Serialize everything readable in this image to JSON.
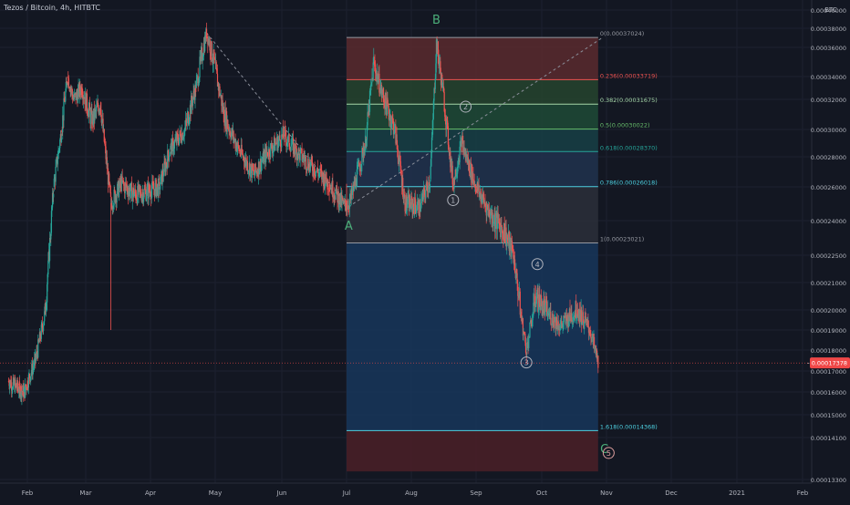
{
  "header": {
    "symbol_title": "Tezos / Bitcoin, 4h, HITBTC",
    "axis_unit": "BTC"
  },
  "colors": {
    "background": "#131722",
    "candle_up": "#26a69a",
    "candle_down": "#ef5350",
    "wave_label": "#b2b5be",
    "abc_label": "#4caf7a",
    "price_tag": "#f04848"
  },
  "chart_data": {
    "type": "candlestick",
    "title": "Tezos / Bitcoin, 4h, HITBTC",
    "y_unit": "BTC",
    "y_scale": "log",
    "ylim": [
      0.000133,
      0.0004
    ],
    "x_ticks": [
      "Feb",
      "Mar",
      "Apr",
      "May",
      "Jun",
      "Jul",
      "Aug",
      "Sep",
      "Oct",
      "Nov",
      "Dec",
      "2021",
      "Feb"
    ],
    "y_ticks": [
      "0.00040000",
      "0.00038000",
      "0.00036000",
      "0.00034000",
      "0.00032000",
      "0.00030000",
      "0.00028000",
      "0.00026000",
      "0.00024000",
      "0.00022500",
      "0.00021000",
      "0.00020000",
      "0.00019000",
      "0.00018000",
      "0.00017000",
      "0.00016000",
      "0.00015000",
      "0.00014100",
      "0.00013300"
    ],
    "last_price_label": "0.00017378",
    "price_path": [
      {
        "date": "2020-01-20",
        "price": 0.000165
      },
      {
        "date": "2020-01-30",
        "price": 0.00016
      },
      {
        "date": "2020-02-05",
        "price": 0.000175
      },
      {
        "date": "2020-02-10",
        "price": 0.0002
      },
      {
        "date": "2020-02-14",
        "price": 0.00026
      },
      {
        "date": "2020-02-18",
        "price": 0.0003
      },
      {
        "date": "2020-02-21",
        "price": 0.00034
      },
      {
        "date": "2020-02-24",
        "price": 0.00032
      },
      {
        "date": "2020-02-28",
        "price": 0.00033
      },
      {
        "date": "2020-03-04",
        "price": 0.000305
      },
      {
        "date": "2020-03-08",
        "price": 0.000318
      },
      {
        "date": "2020-03-13",
        "price": 0.00025
      },
      {
        "date": "2020-03-18",
        "price": 0.000262
      },
      {
        "date": "2020-03-25",
        "price": 0.000255
      },
      {
        "date": "2020-04-05",
        "price": 0.00026
      },
      {
        "date": "2020-04-10",
        "price": 0.000285
      },
      {
        "date": "2020-04-17",
        "price": 0.0003
      },
      {
        "date": "2020-04-22",
        "price": 0.00033
      },
      {
        "date": "2020-04-27",
        "price": 0.000375
      },
      {
        "date": "2020-05-01",
        "price": 0.000345
      },
      {
        "date": "2020-05-05",
        "price": 0.00031
      },
      {
        "date": "2020-05-12",
        "price": 0.000285
      },
      {
        "date": "2020-05-19",
        "price": 0.000268
      },
      {
        "date": "2020-05-26",
        "price": 0.000285
      },
      {
        "date": "2020-06-02",
        "price": 0.000295
      },
      {
        "date": "2020-06-09",
        "price": 0.000282
      },
      {
        "date": "2020-06-16",
        "price": 0.000272
      },
      {
        "date": "2020-06-23",
        "price": 0.000262
      },
      {
        "date": "2020-06-30",
        "price": 0.000248
      },
      {
        "date": "2020-07-03",
        "price": 0.000252
      },
      {
        "date": "2020-07-10",
        "price": 0.00029
      },
      {
        "date": "2020-07-14",
        "price": 0.00035
      },
      {
        "date": "2020-07-18",
        "price": 0.000325
      },
      {
        "date": "2020-07-24",
        "price": 0.0003
      },
      {
        "date": "2020-07-29",
        "price": 0.00025
      },
      {
        "date": "2020-08-05",
        "price": 0.000248
      },
      {
        "date": "2020-08-10",
        "price": 0.000265
      },
      {
        "date": "2020-08-13",
        "price": 0.000365
      },
      {
        "date": "2020-08-16",
        "price": 0.00033
      },
      {
        "date": "2020-08-21",
        "price": 0.000262
      },
      {
        "date": "2020-08-25",
        "price": 0.00029
      },
      {
        "date": "2020-09-01",
        "price": 0.00026
      },
      {
        "date": "2020-09-07",
        "price": 0.000245
      },
      {
        "date": "2020-09-14",
        "price": 0.000235
      },
      {
        "date": "2020-09-18",
        "price": 0.000225
      },
      {
        "date": "2020-09-24",
        "price": 0.00018
      },
      {
        "date": "2020-09-28",
        "price": 0.000205
      },
      {
        "date": "2020-10-04",
        "price": 0.000198
      },
      {
        "date": "2020-10-10",
        "price": 0.000192
      },
      {
        "date": "2020-10-18",
        "price": 0.0002
      },
      {
        "date": "2020-10-24",
        "price": 0.00019
      },
      {
        "date": "2020-10-28",
        "price": 0.000174
      }
    ],
    "annotations": {
      "trend_line": [
        {
          "date": "2020-04-27",
          "price": 0.000375
        },
        {
          "date": "2020-07-02",
          "price": 0.000248
        },
        {
          "date": "2020-10-30",
          "price": 0.00037
        }
      ],
      "fib_retracement": {
        "start_date": "2020-07-01",
        "end_date": "2020-10-28",
        "levels": [
          {
            "ratio": "0",
            "price": 0.00037024,
            "label": "0(0.00037024)",
            "color": "#9598a1",
            "band": "#5a2a2e"
          },
          {
            "ratio": "0.236",
            "price": 0.00033719,
            "label": "0.236(0.00033719)",
            "color": "#ef5350",
            "band": "#26442e"
          },
          {
            "ratio": "0.382",
            "price": 0.00031675,
            "label": "0.382(0.00031675)",
            "color": "#a5d6a7",
            "band": "#1e4a36"
          },
          {
            "ratio": "0.5",
            "price": 0.00030022,
            "label": "0.5(0.00030022)",
            "color": "#66bb6a",
            "band": "#173f45"
          },
          {
            "ratio": "0.618",
            "price": 0.0002837,
            "label": "0.618(0.00028370)",
            "color": "#26a69a",
            "band": "#21324e"
          },
          {
            "ratio": "0.786",
            "price": 0.00026018,
            "label": "0.786(0.00026018)",
            "color": "#4dd0e1",
            "band": "#2b2f3a"
          },
          {
            "ratio": "1",
            "price": 0.00023021,
            "label": "1(0.00023021)",
            "color": "#9598a1",
            "band": "#17365a"
          },
          {
            "ratio": "1.618",
            "price": 0.00014368,
            "label": "1.618(0.00014368)",
            "color": "#4dd0e1",
            "band": "#4b2027"
          }
        ],
        "bottom_price": 0.0001345
      },
      "abc_labels": [
        {
          "text": "A",
          "date": "2020-07-02",
          "price": 0.000236
        },
        {
          "text": "B",
          "date": "2020-08-13",
          "price": 0.000385
        },
        {
          "text": "C",
          "date": "2020-10-31",
          "price": 0.000138
        }
      ],
      "wave_labels": [
        {
          "text": "1",
          "date": "2020-08-21",
          "price": 0.000252
        },
        {
          "text": "2",
          "date": "2020-08-27",
          "price": 0.000315
        },
        {
          "text": "3",
          "date": "2020-09-24",
          "price": 0.000174
        },
        {
          "text": "4",
          "date": "2020-09-29",
          "price": 0.00022
        },
        {
          "text": "5",
          "date": "2020-11-02",
          "price": 0.000138
        }
      ]
    }
  }
}
